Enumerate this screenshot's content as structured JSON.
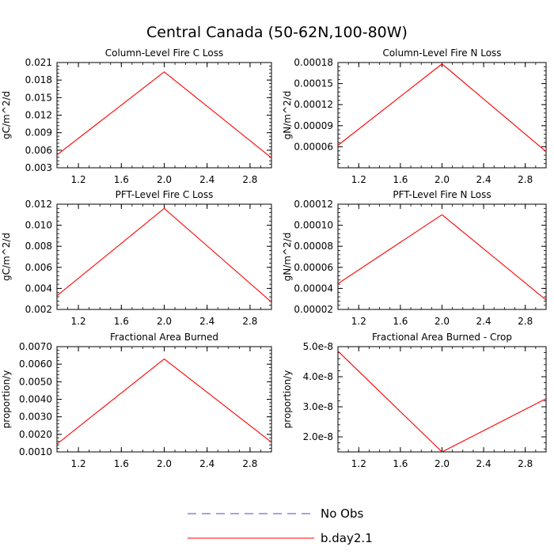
{
  "figure": {
    "title": "Central Canada (50-62N,100-80W)"
  },
  "legend": {
    "placement": "bottom-center",
    "entries": [
      {
        "label": "No Obs",
        "color": "#4b4bc8",
        "style": "dashed"
      },
      {
        "label": "b.day2.1",
        "color": "#ff0000",
        "style": "solid"
      }
    ]
  },
  "chart_data": [
    {
      "type": "line",
      "title": "Column-Level Fire C Loss",
      "xlabel": "",
      "ylabel": "gC/m^2/d",
      "xlim": [
        1.0,
        3.0
      ],
      "ylim": [
        0.003,
        0.021
      ],
      "xticks": [
        "1.2",
        "1.6",
        "2.0",
        "2.4",
        "2.8"
      ],
      "yticks": [
        "0.003",
        "0.006",
        "0.009",
        "0.012",
        "0.015",
        "0.018",
        "0.021"
      ],
      "series": [
        {
          "name": "b.day2.1",
          "color": "#ff0000",
          "x": [
            1,
            2,
            3
          ],
          "y": [
            0.0052,
            0.0194,
            0.0047
          ]
        }
      ]
    },
    {
      "type": "line",
      "title": "Column-Level Fire N Loss",
      "xlabel": "",
      "ylabel": "gN/m^2/d",
      "xlim": [
        1.0,
        3.0
      ],
      "ylim": [
        3e-05,
        0.00018
      ],
      "xticks": [
        "1.2",
        "1.6",
        "2.0",
        "2.4",
        "2.8"
      ],
      "yticks": [
        "0.00006",
        "0.00009",
        "0.00012",
        "0.00015",
        "0.00018"
      ],
      "series": [
        {
          "name": "b.day2.1",
          "color": "#ff0000",
          "x": [
            1,
            2,
            3
          ],
          "y": [
            6.2e-05,
            0.000178,
            5.3e-05
          ]
        }
      ]
    },
    {
      "type": "line",
      "title": "PFT-Level Fire C Loss",
      "xlabel": "",
      "ylabel": "gC/m^2/d",
      "xlim": [
        1.0,
        3.0
      ],
      "ylim": [
        0.002,
        0.012
      ],
      "xticks": [
        "1.2",
        "1.6",
        "2.0",
        "2.4",
        "2.8"
      ],
      "yticks": [
        "0.002",
        "0.004",
        "0.006",
        "0.008",
        "0.010",
        "0.012"
      ],
      "series": [
        {
          "name": "b.day2.1",
          "color": "#ff0000",
          "x": [
            1,
            2,
            3
          ],
          "y": [
            0.0033,
            0.0116,
            0.0027
          ]
        }
      ]
    },
    {
      "type": "line",
      "title": "PFT-Level Fire N Loss",
      "xlabel": "",
      "ylabel": "gN/m^2/d",
      "xlim": [
        1.0,
        3.0
      ],
      "ylim": [
        2e-05,
        0.00012
      ],
      "xticks": [
        "1.2",
        "1.6",
        "2.0",
        "2.4",
        "2.8"
      ],
      "yticks": [
        "0.00002",
        "0.00004",
        "0.00006",
        "0.00008",
        "0.00010",
        "0.00012"
      ],
      "series": [
        {
          "name": "b.day2.1",
          "color": "#ff0000",
          "x": [
            1,
            2,
            3
          ],
          "y": [
            4.45e-05,
            0.00011,
            2.9e-05
          ]
        }
      ]
    },
    {
      "type": "line",
      "title": "Fractional Area Burned",
      "xlabel": "",
      "ylabel": "proportion/y",
      "xlim": [
        1.0,
        3.0
      ],
      "ylim": [
        0.001,
        0.007
      ],
      "xticks": [
        "1.2",
        "1.6",
        "2.0",
        "2.4",
        "2.8"
      ],
      "yticks": [
        "0.0010",
        "0.0020",
        "0.0030",
        "0.0040",
        "0.0050",
        "0.0060",
        "0.0070"
      ],
      "series": [
        {
          "name": "b.day2.1",
          "color": "#ff0000",
          "x": [
            1,
            2,
            3
          ],
          "y": [
            0.00145,
            0.0063,
            0.00155
          ]
        }
      ]
    },
    {
      "type": "line",
      "title": "Fractional Area Burned - Crop",
      "xlabel": "",
      "ylabel": "proportion/y",
      "xlim": [
        1.0,
        3.0
      ],
      "ylim": [
        1.5e-08,
        5e-08
      ],
      "xticks": [
        "1.2",
        "1.6",
        "2.0",
        "2.4",
        "2.8"
      ],
      "yticks": [
        "2.0e-8",
        "3.0e-8",
        "4.0e-8",
        "5.0e-8"
      ],
      "series": [
        {
          "name": "b.day2.1",
          "color": "#ff0000",
          "x": [
            1,
            2,
            3
          ],
          "y": [
            4.85e-08,
            1.5e-08,
            3.27e-08
          ]
        }
      ]
    }
  ]
}
